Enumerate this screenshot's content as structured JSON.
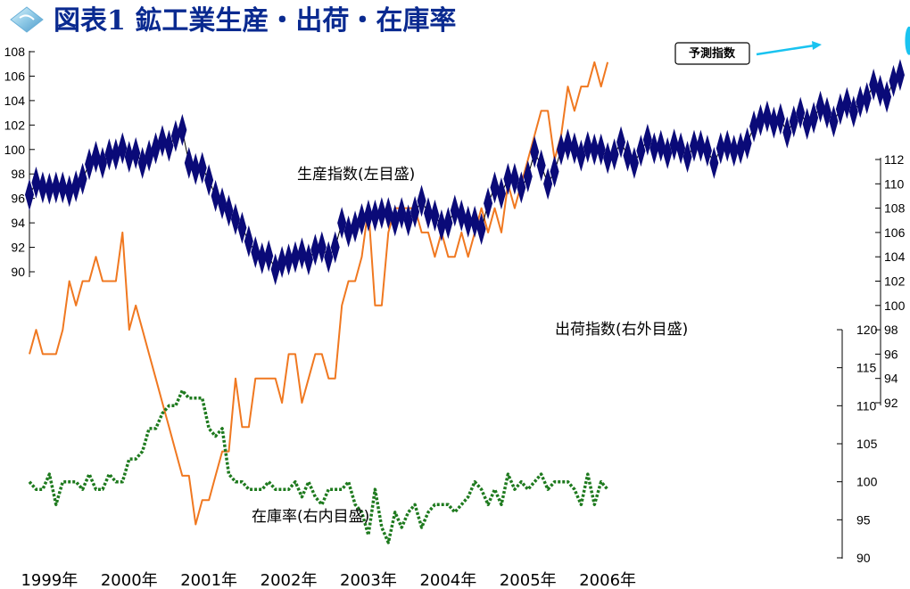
{
  "title": "図表1 鉱工業生産・出荷・在庫率",
  "colors": {
    "production": "#0a0a78",
    "shipments": "#f07820",
    "inventory": "#1e7a1e",
    "forecast": "#19c3f0",
    "title": "#0a2a90"
  },
  "icons": {
    "title_icon": "diamond-icon",
    "forecast_marker": "ellipse-marker-icon"
  },
  "chart_data": {
    "type": "line",
    "x_tick_labels": [
      "1999年",
      "2000年",
      "2001年",
      "2002年",
      "2003年",
      "2004年",
      "2005年",
      "2006年"
    ],
    "x_start_year": 1999,
    "axes": {
      "left": {
        "ylim": [
          90,
          108
        ],
        "ticks": [
          "90",
          "92",
          "94",
          "96",
          "98",
          "100",
          "102",
          "104",
          "106",
          "108"
        ]
      },
      "right_outer": {
        "ylim": [
          92,
          112
        ],
        "ticks": [
          "92",
          "94",
          "96",
          "98",
          "100",
          "102",
          "104",
          "106",
          "108",
          "110",
          "112"
        ]
      },
      "right_inner": {
        "ylim": [
          90,
          120
        ],
        "ticks": [
          "90",
          "95",
          "100",
          "105",
          "110",
          "115",
          "120"
        ]
      }
    },
    "series": [
      {
        "name": "生産指数(左目盛)",
        "axis": "left",
        "marker": "diamond",
        "values": [
          96.3,
          97.3,
          96.9,
          96.8,
          96.9,
          96.9,
          96.6,
          97.0,
          97.6,
          98.8,
          99.4,
          98.9,
          99.6,
          99.6,
          100.1,
          99.4,
          99.7,
          98.9,
          99.5,
          100.1,
          100.7,
          100.3,
          101.1,
          101.6,
          98.9,
          98.4,
          98.5,
          97.5,
          96.2,
          95.6,
          95.0,
          94.3,
          93.6,
          92.5,
          91.6,
          91.1,
          91.3,
          90.2,
          90.8,
          91.0,
          91.2,
          91.5,
          91.0,
          91.8,
          92.0,
          91.2,
          92.0,
          94.0,
          93.3,
          93.7,
          94.3,
          94.6,
          94.6,
          94.8,
          94.8,
          94.2,
          94.8,
          94.2,
          94.9,
          95.8,
          94.8,
          94.6,
          93.8,
          94.0,
          95.0,
          94.6,
          94.1,
          94.1,
          93.5,
          95.6,
          96.9,
          96.4,
          97.6,
          97.6,
          96.9,
          97.8,
          99.8,
          98.7,
          97.2,
          98.2,
          100.0,
          100.4,
          100.1,
          99.5,
          100.2,
          100.0,
          100.0,
          99.3,
          99.6,
          100.6,
          99.5,
          98.9,
          99.9,
          100.8,
          100.1,
          100.3,
          99.7,
          100.4,
          100.1,
          99.4,
          100.3,
          100.3,
          99.9,
          98.9,
          100.1,
          100.3,
          99.9,
          100.1,
          100.5,
          101.9,
          102.4,
          102.7,
          102.2,
          102.5,
          101.4,
          102.3,
          103.0,
          102.1,
          102.6,
          103.5,
          103.0,
          102.3,
          103.3,
          103.8,
          103.1,
          103.9,
          104.2,
          105.3,
          104.8,
          104.3,
          105.6,
          106.1
        ],
        "forecast": {
          "label": "予測指数",
          "values": [
            107.8,
            107.8
          ]
        }
      },
      {
        "name": "出荷指数(右外目盛)",
        "axis": "right_outer",
        "values": [
          96,
          98,
          96,
          96,
          96,
          98,
          102,
          100,
          102,
          102,
          104,
          102,
          102,
          102,
          106,
          98,
          100,
          98,
          96,
          94,
          92,
          90,
          88,
          86,
          86,
          82,
          84,
          84,
          86,
          88,
          88,
          94,
          90,
          90,
          94,
          94,
          94,
          94,
          92,
          96,
          96,
          92,
          94,
          96,
          96,
          94,
          94,
          100,
          102,
          102,
          104,
          108,
          100,
          100,
          106,
          108,
          108,
          108,
          108,
          106,
          106,
          104,
          106,
          104,
          104,
          106,
          104,
          106,
          108,
          106,
          108,
          106,
          110,
          108,
          110,
          112,
          114,
          116,
          116,
          112,
          114,
          118,
          116,
          118,
          118,
          120,
          118,
          120
        ],
        "count_limit": 90
      },
      {
        "name": "在庫率(右内目盛)",
        "axis": "right_inner",
        "style": "dotted",
        "values": [
          100,
          99,
          99,
          101,
          97,
          100,
          100,
          100,
          99,
          101,
          99,
          99,
          101,
          100,
          100,
          103,
          103,
          104,
          107,
          107,
          109,
          110,
          110,
          112,
          111,
          111,
          111,
          107,
          106,
          107,
          101,
          100,
          100,
          99,
          99,
          99,
          100,
          99,
          99,
          99,
          100,
          98,
          100,
          98,
          97,
          99,
          99,
          99,
          100,
          97,
          96,
          93,
          99,
          94,
          92,
          96,
          94,
          96,
          97,
          94,
          96,
          97,
          97,
          97,
          96,
          97,
          98,
          100,
          99,
          97,
          99,
          97,
          101,
          99,
          100,
          99,
          100,
          101,
          99,
          100,
          100,
          100,
          99,
          97,
          101,
          97,
          100,
          99
        ]
      }
    ]
  }
}
